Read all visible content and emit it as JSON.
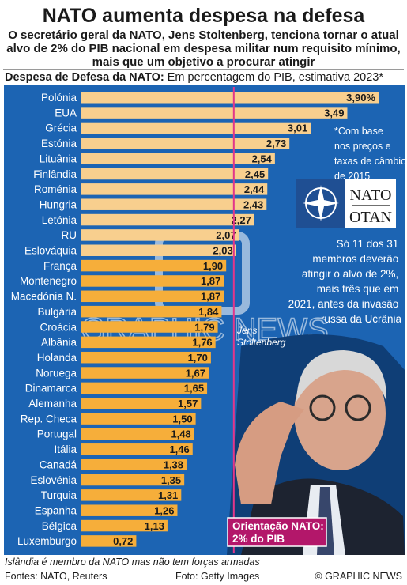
{
  "header": {
    "title": "NATO aumenta despesa na defesa",
    "subtitle": "O secretário geral da NATO, Jens Stoltenberg, tenciona tornar o atual alvo de 2% do PIB nacional em despesa militar num requisito mínimo, mais que um objetivo a procurar atingir",
    "chart_title_bold": "Despesa de Defesa da NATO:",
    "chart_title_rest": " Em percentagem do PIB, estimativa 2023*"
  },
  "annotations": {
    "basis_note": [
      "*Com base",
      "nos preços e",
      "taxas de câmbio",
      "de 2015"
    ],
    "members_note": [
      "Só 11 dos 31",
      "membros deverão",
      "atingir o alvo de 2%,",
      "mais três que em",
      "2021, antes da invasão",
      "russa da Ucrânia"
    ],
    "portrait_caption": [
      "Jens",
      "Stoltenberg"
    ],
    "guideline_label": [
      "Orientação NATO:",
      "2% do PIB"
    ],
    "logo_top": "NATO",
    "logo_bottom": "OTAN",
    "watermark": "GRAPHIC NEWS"
  },
  "footer": {
    "note": "Islândia é membro da NATO mas não tem forças armadas",
    "sources": "Fontes: NATO, Reuters",
    "photo": "Foto: Getty Images",
    "credit": "© GRAPHIC NEWS"
  },
  "colors": {
    "panel": "#1c64b3",
    "bar": "#f6ae3a",
    "bar_above_target": "#f8cf8e",
    "guideline": "#e2368a",
    "label_box": "#b3176a"
  },
  "chart_data": {
    "type": "bar",
    "orientation": "horizontal",
    "unit": "%",
    "target": 2,
    "xlim": [
      0,
      3.9
    ],
    "categories": [
      "Polónia",
      "EUA",
      "Grécia",
      "Estónia",
      "Lituânia",
      "Finlândia",
      "Roménia",
      "Hungria",
      "Letónia",
      "RU",
      "Eslováquia",
      "França",
      "Montenegro",
      "Macedónia N.",
      "Bulgária",
      "Croácia",
      "Albânia",
      "Holanda",
      "Noruega",
      "Dinamarca",
      "Alemanha",
      "Rep. Checa",
      "Portugal",
      "Itália",
      "Canadá",
      "Eslovénia",
      "Turquia",
      "Espanha",
      "Bélgica",
      "Luxemburgo"
    ],
    "values": [
      3.9,
      3.49,
      3.01,
      2.73,
      2.54,
      2.45,
      2.44,
      2.43,
      2.27,
      2.07,
      2.03,
      1.9,
      1.87,
      1.87,
      1.84,
      1.79,
      1.76,
      1.7,
      1.67,
      1.65,
      1.57,
      1.5,
      1.48,
      1.46,
      1.38,
      1.35,
      1.31,
      1.26,
      1.13,
      0.72
    ],
    "value_labels": [
      "3,90%",
      "3,49",
      "3,01",
      "2,73",
      "2,54",
      "2,45",
      "2,44",
      "2,43",
      "2,27",
      "2,07",
      "2,03",
      "1,90",
      "1,87",
      "1,87",
      "1,84",
      "1,79",
      "1,76",
      "1,70",
      "1,67",
      "1,65",
      "1,57",
      "1,50",
      "1,48",
      "1,46",
      "1,38",
      "1,35",
      "1,31",
      "1,26",
      "1,13",
      "0,72"
    ]
  }
}
